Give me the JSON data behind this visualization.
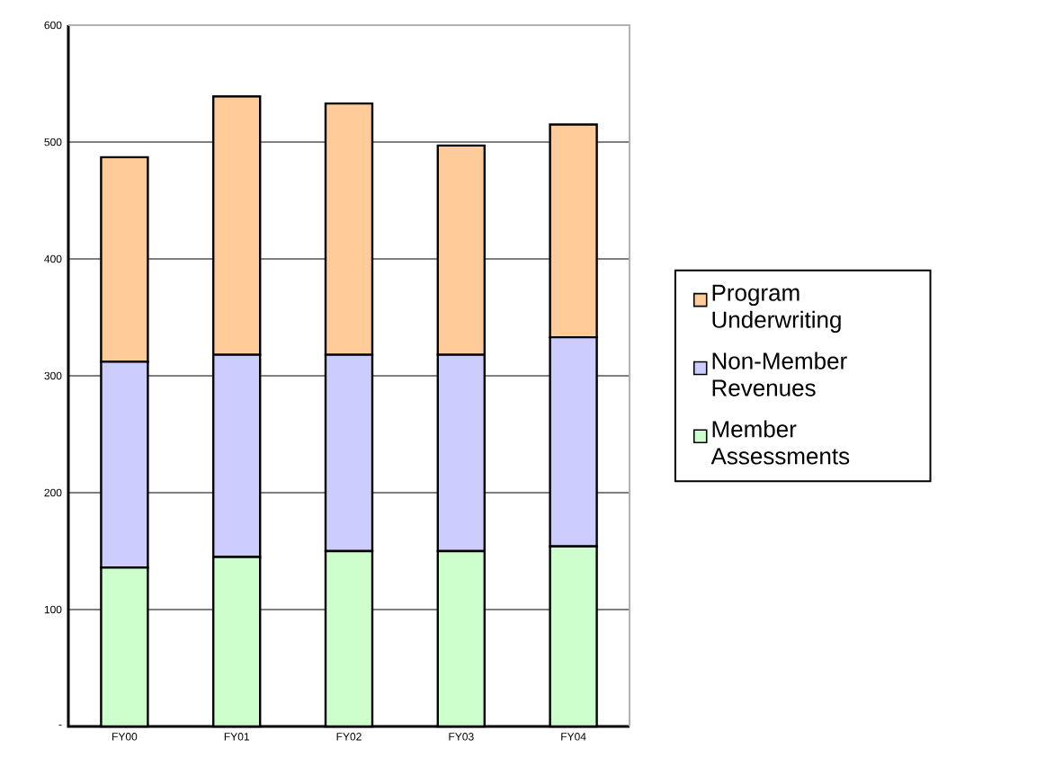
{
  "chart_data": {
    "type": "bar",
    "stacked": true,
    "categories": [
      "FY00",
      "FY01",
      "FY02",
      "FY03",
      "FY04"
    ],
    "series": [
      {
        "name": "Member Assessments",
        "color": "#ccffcc",
        "values": [
          136,
          145,
          150,
          150,
          154
        ]
      },
      {
        "name": "Non-Member Revenues",
        "color": "#ccccff",
        "values": [
          176,
          173,
          168,
          168,
          179
        ]
      },
      {
        "name": "Program Underwriting",
        "color": "#ffcc99",
        "values": [
          175,
          221,
          215,
          179,
          182
        ]
      }
    ],
    "ylim": [
      0,
      600
    ],
    "yticks": [
      {
        "value": 0,
        "label": "-"
      },
      100,
      200,
      300,
      400,
      500,
      600
    ],
    "grid": "y",
    "legend": "right"
  }
}
